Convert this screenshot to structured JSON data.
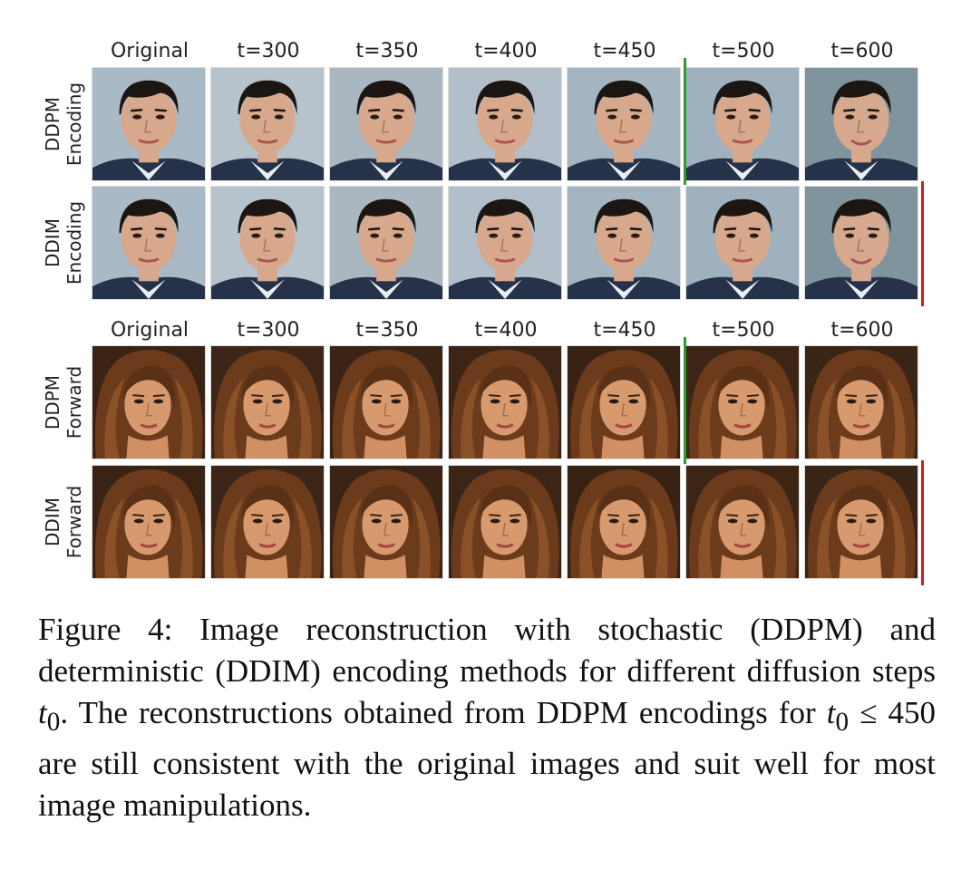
{
  "column_labels": [
    "Original",
    "t=300",
    "t=350",
    "t=400",
    "t=450",
    "t=500",
    "t=600"
  ],
  "blocks": [
    {
      "rows": [
        {
          "label_lines": [
            "DDPM",
            "Encoding"
          ],
          "subject": "man"
        },
        {
          "label_lines": [
            "DDIM",
            "Encoding"
          ],
          "subject": "man"
        }
      ]
    },
    {
      "rows": [
        {
          "label_lines": [
            "DDPM",
            "Forward"
          ],
          "subject": "woman"
        },
        {
          "label_lines": [
            "DDIM",
            "Forward"
          ],
          "subject": "woman"
        }
      ]
    }
  ],
  "markers": {
    "ddpm_color": "#2e9a2e",
    "ddim_color": "#d21a1a"
  },
  "caption": {
    "prefix": "Figure 4:  Image reconstruction with stochastic (DDPM) and deterministic (DDIM) encoding methods for different diffusion steps ",
    "t0_a": "t",
    "sub_a": "0",
    "mid1": ". The reconstructions obtained from DDPM encodings for ",
    "t0_b": "t",
    "sub_b": "0",
    "leq": " ≤ 450",
    "suffix": " are still consistent with the original images and suit well for most image manipulations."
  }
}
